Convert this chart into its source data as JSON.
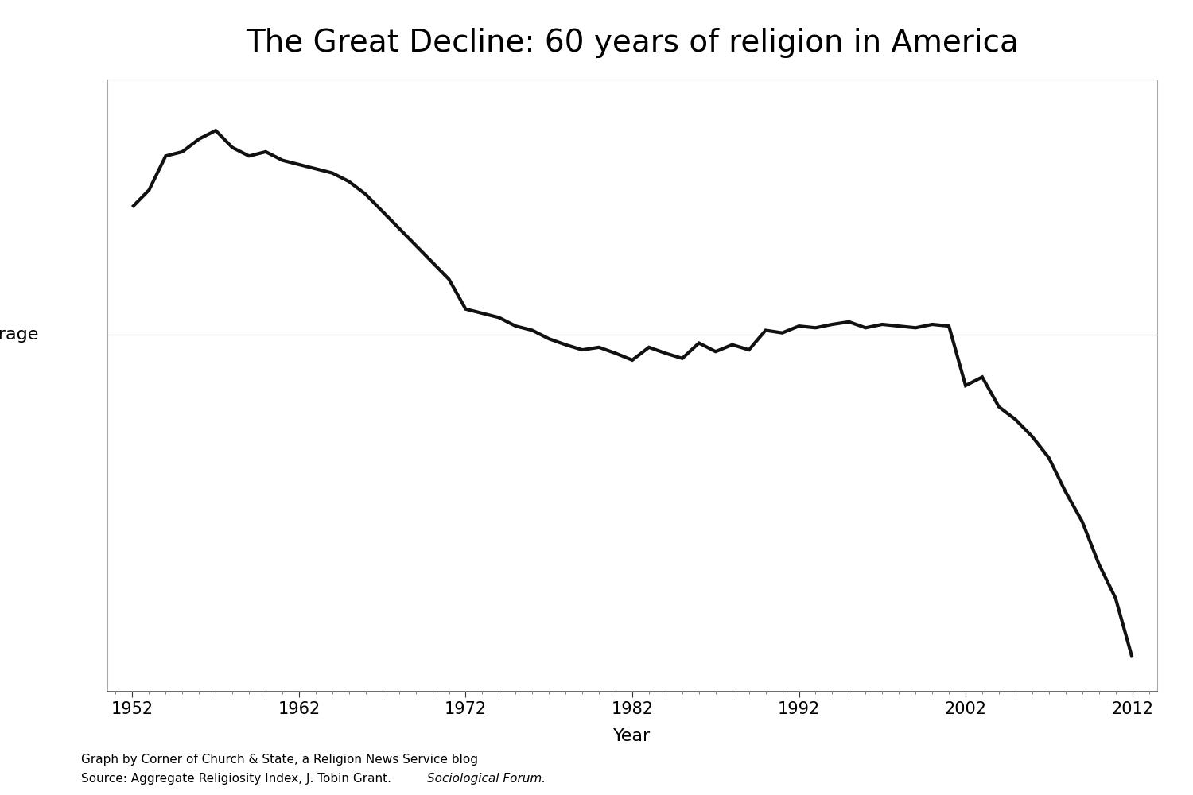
{
  "title": "The Great Decline: 60 years of religion in America",
  "xlabel": "Year",
  "ylabel_label": "Average",
  "caption_line1": "Graph by Corner of Church & State, a Religion News Service blog",
  "caption_line2_plain": "Source: Aggregate Religiosity Index, J. Tobin Grant. ",
  "caption_line2_italic": "Sociological Forum.",
  "background_color": "#ffffff",
  "line_color": "#111111",
  "line_width": 3.0,
  "average_line_y": 0.0,
  "xlim": [
    1950.5,
    2013.5
  ],
  "ylim": [
    -4.2,
    3.0
  ],
  "xticks": [
    1952,
    1962,
    1972,
    1982,
    1992,
    2002,
    2012
  ],
  "data": {
    "years": [
      1952,
      1953,
      1954,
      1955,
      1956,
      1957,
      1958,
      1959,
      1960,
      1961,
      1962,
      1963,
      1964,
      1965,
      1966,
      1967,
      1968,
      1969,
      1970,
      1971,
      1972,
      1973,
      1974,
      1975,
      1976,
      1977,
      1978,
      1979,
      1980,
      1981,
      1982,
      1983,
      1984,
      1985,
      1986,
      1987,
      1988,
      1989,
      1990,
      1991,
      1992,
      1993,
      1994,
      1995,
      1996,
      1997,
      1998,
      1999,
      2000,
      2001,
      2002,
      2003,
      2004,
      2005,
      2006,
      2007,
      2008,
      2009,
      2010,
      2011,
      2012
    ],
    "values": [
      1.5,
      1.7,
      2.1,
      2.15,
      2.3,
      2.4,
      2.2,
      2.1,
      2.15,
      2.05,
      2.0,
      1.95,
      1.9,
      1.8,
      1.65,
      1.45,
      1.25,
      1.05,
      0.85,
      0.65,
      0.3,
      0.25,
      0.2,
      0.1,
      0.05,
      -0.05,
      -0.12,
      -0.18,
      -0.15,
      -0.22,
      -0.3,
      -0.15,
      -0.22,
      -0.28,
      -0.1,
      -0.2,
      -0.12,
      -0.18,
      0.05,
      0.02,
      0.1,
      0.08,
      0.12,
      0.15,
      0.08,
      0.12,
      0.1,
      0.08,
      0.12,
      0.1,
      -0.6,
      -0.5,
      -0.85,
      -1.0,
      -1.2,
      -1.45,
      -1.85,
      -2.2,
      -2.7,
      -3.1,
      -3.8
    ]
  }
}
